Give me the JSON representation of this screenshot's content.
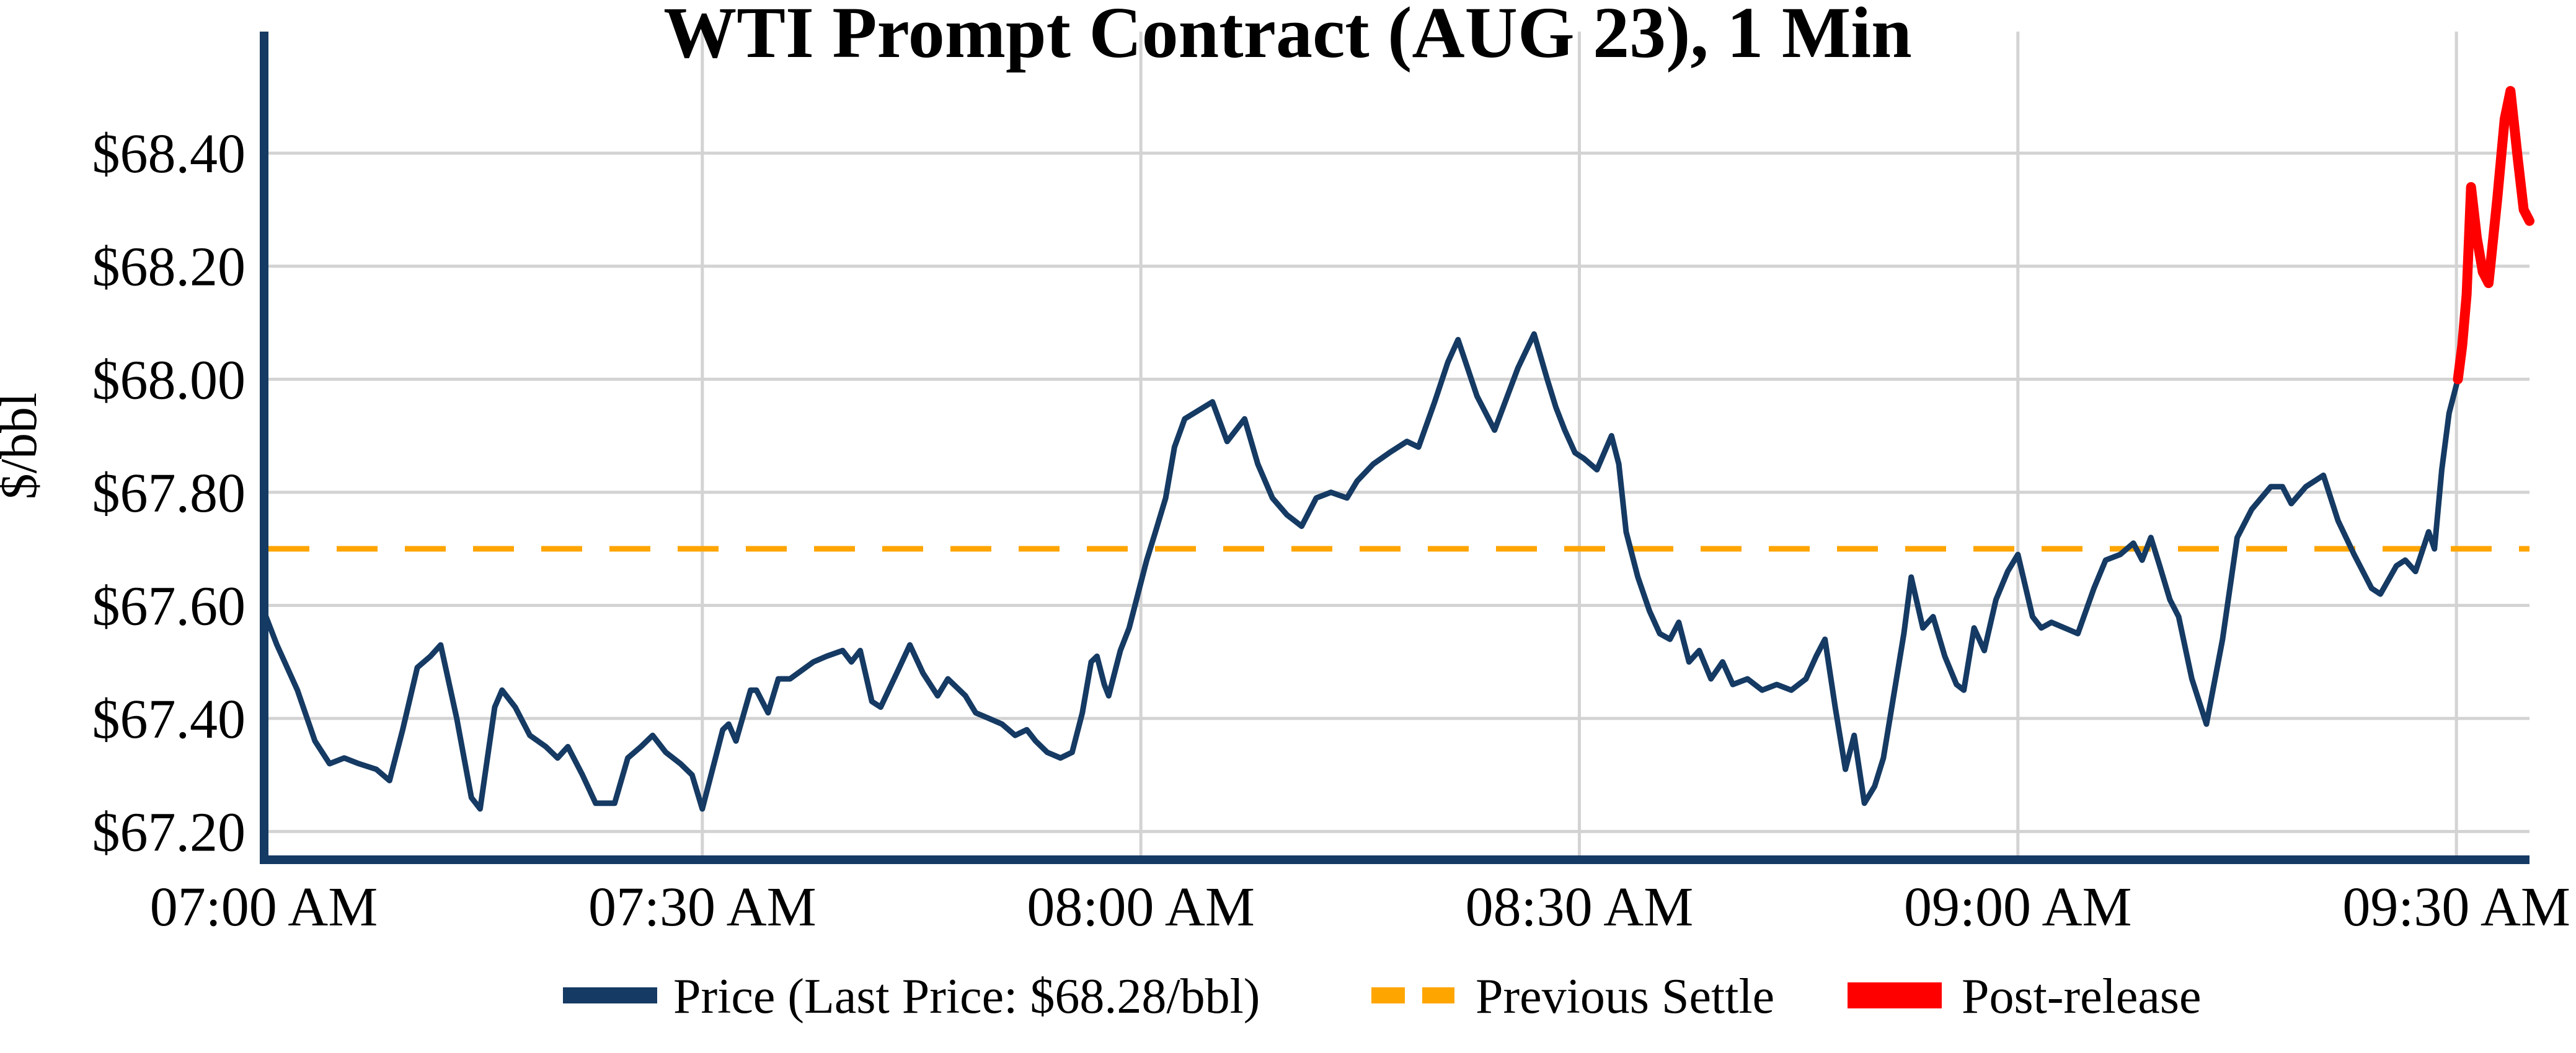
{
  "title": "WTI Prompt Contract (AUG 23), 1 Min",
  "colors": {
    "price_line": "#153a63",
    "previous_settle_line": "#ffa500",
    "post_release_line": "#ff0000",
    "gridline": "#d3d3d3",
    "axis_spine": "#153a63",
    "text": "#000000",
    "background": "#ffffff"
  },
  "chart_data": {
    "type": "line",
    "title": "WTI Prompt Contract (AUG 23), 1 Min",
    "xlabel": "",
    "ylabel": "$/bbl",
    "x_unit": "minutes after 07:00 AM",
    "xlim": [
      0,
      155
    ],
    "ylim": [
      67.15,
      68.615
    ],
    "grid": true,
    "legend_position": "bottom",
    "previous_settle": 67.7,
    "last_price_text": "$68.28/bbl",
    "x_ticks": [
      {
        "t": 0,
        "label": "07:00 AM"
      },
      {
        "t": 30,
        "label": "07:30 AM"
      },
      {
        "t": 60,
        "label": "08:00 AM"
      },
      {
        "t": 90,
        "label": "08:30 AM"
      },
      {
        "t": 120,
        "label": "09:00 AM"
      },
      {
        "t": 150,
        "label": "09:30 AM"
      }
    ],
    "y_ticks": [
      {
        "v": 67.2,
        "label": "$67.20"
      },
      {
        "v": 67.4,
        "label": "$67.40"
      },
      {
        "v": 67.6,
        "label": "$67.60"
      },
      {
        "v": 67.8,
        "label": "$67.80"
      },
      {
        "v": 68.0,
        "label": "$68.00"
      },
      {
        "v": 68.2,
        "label": "$68.20"
      },
      {
        "v": 68.4,
        "label": "$68.40"
      }
    ],
    "series": [
      {
        "name": "Price (Last Price: $68.28/bbl)",
        "role": "price",
        "color": "#153a63",
        "width": 9,
        "style": "solid",
        "points": [
          [
            0,
            67.59
          ],
          [
            0.9,
            67.53
          ],
          [
            2.3,
            67.45
          ],
          [
            3.5,
            67.36
          ],
          [
            4.5,
            67.32
          ],
          [
            5.5,
            67.33
          ],
          [
            6.5,
            67.32
          ],
          [
            7.7,
            67.31
          ],
          [
            8.6,
            67.29
          ],
          [
            9.5,
            67.38
          ],
          [
            10.5,
            67.49
          ],
          [
            11.4,
            67.51
          ],
          [
            12.1,
            67.53
          ],
          [
            13.2,
            67.4
          ],
          [
            14.2,
            67.26
          ],
          [
            14.8,
            67.24
          ],
          [
            15.8,
            67.42
          ],
          [
            16.3,
            67.45
          ],
          [
            17.2,
            67.42
          ],
          [
            18.2,
            67.37
          ],
          [
            19.3,
            67.35
          ],
          [
            20.1,
            67.33
          ],
          [
            20.8,
            67.35
          ],
          [
            21.8,
            67.3
          ],
          [
            22.7,
            67.25
          ],
          [
            24,
            67.25
          ],
          [
            24.9,
            67.33
          ],
          [
            25.8,
            67.35
          ],
          [
            26.6,
            67.37
          ],
          [
            27.5,
            67.34
          ],
          [
            28.5,
            67.32
          ],
          [
            29.3,
            67.3
          ],
          [
            30,
            67.24
          ],
          [
            31.4,
            67.38
          ],
          [
            31.8,
            67.39
          ],
          [
            32.3,
            67.36
          ],
          [
            33.3,
            67.45
          ],
          [
            33.7,
            67.45
          ],
          [
            34.5,
            67.41
          ],
          [
            35.2,
            67.47
          ],
          [
            36,
            67.47
          ],
          [
            37.6,
            67.5
          ],
          [
            38.5,
            67.51
          ],
          [
            39.6,
            67.52
          ],
          [
            40.2,
            67.5
          ],
          [
            40.8,
            67.52
          ],
          [
            41.6,
            67.43
          ],
          [
            42.2,
            67.42
          ],
          [
            43.3,
            67.48
          ],
          [
            44.2,
            67.53
          ],
          [
            45.1,
            67.48
          ],
          [
            46.1,
            67.44
          ],
          [
            46.8,
            67.47
          ],
          [
            48,
            67.44
          ],
          [
            48.7,
            67.41
          ],
          [
            49.6,
            67.4
          ],
          [
            50.5,
            67.39
          ],
          [
            51.4,
            67.37
          ],
          [
            52.2,
            67.38
          ],
          [
            52.8,
            67.36
          ],
          [
            53.6,
            67.34
          ],
          [
            54.5,
            67.33
          ],
          [
            55.3,
            67.34
          ],
          [
            56,
            67.41
          ],
          [
            56.6,
            67.5
          ],
          [
            57,
            67.51
          ],
          [
            57.5,
            67.46
          ],
          [
            57.8,
            67.44
          ],
          [
            58.6,
            67.52
          ],
          [
            59.2,
            67.56
          ],
          [
            59.8,
            67.62
          ],
          [
            60.4,
            67.68
          ],
          [
            61,
            67.73
          ],
          [
            61.7,
            67.79
          ],
          [
            62.3,
            67.88
          ],
          [
            63,
            67.93
          ],
          [
            64.9,
            67.96
          ],
          [
            65.9,
            67.89
          ],
          [
            67.1,
            67.93
          ],
          [
            68,
            67.85
          ],
          [
            69,
            67.79
          ],
          [
            70,
            67.76
          ],
          [
            71,
            67.74
          ],
          [
            72,
            67.79
          ],
          [
            73,
            67.8
          ],
          [
            74.1,
            67.79
          ],
          [
            74.8,
            67.82
          ],
          [
            75.9,
            67.85
          ],
          [
            77,
            67.87
          ],
          [
            78.2,
            67.89
          ],
          [
            79,
            67.88
          ],
          [
            80.1,
            67.96
          ],
          [
            81,
            68.03
          ],
          [
            81.7,
            68.07
          ],
          [
            83,
            67.97
          ],
          [
            84.2,
            67.91
          ],
          [
            85.8,
            68.02
          ],
          [
            86.9,
            68.08
          ],
          [
            87.8,
            68.0
          ],
          [
            88.4,
            67.95
          ],
          [
            89,
            67.91
          ],
          [
            89.7,
            67.87
          ],
          [
            90.3,
            67.86
          ],
          [
            91.2,
            67.84
          ],
          [
            92.2,
            67.9
          ],
          [
            92.7,
            67.85
          ],
          [
            93.2,
            67.73
          ],
          [
            94,
            67.65
          ],
          [
            94.8,
            67.59
          ],
          [
            95.5,
            67.55
          ],
          [
            96.2,
            67.54
          ],
          [
            96.8,
            67.57
          ],
          [
            97.5,
            67.5
          ],
          [
            98.2,
            67.52
          ],
          [
            99,
            67.47
          ],
          [
            99.8,
            67.5
          ],
          [
            100.5,
            67.46
          ],
          [
            101.5,
            67.47
          ],
          [
            102.5,
            67.45
          ],
          [
            103.5,
            67.46
          ],
          [
            104.5,
            67.45
          ],
          [
            105.5,
            67.47
          ],
          [
            106.2,
            67.51
          ],
          [
            106.8,
            67.54
          ],
          [
            107.5,
            67.42
          ],
          [
            108.2,
            67.31
          ],
          [
            108.8,
            67.37
          ],
          [
            109.5,
            67.25
          ],
          [
            110.2,
            67.28
          ],
          [
            110.8,
            67.33
          ],
          [
            111.5,
            67.44
          ],
          [
            112.2,
            67.55
          ],
          [
            112.7,
            67.65
          ],
          [
            113.5,
            67.56
          ],
          [
            114.2,
            67.58
          ],
          [
            115,
            67.51
          ],
          [
            115.8,
            67.46
          ],
          [
            116.3,
            67.45
          ],
          [
            117,
            67.56
          ],
          [
            117.7,
            67.52
          ],
          [
            118.5,
            67.61
          ],
          [
            119.3,
            67.66
          ],
          [
            120,
            67.69
          ],
          [
            121,
            67.58
          ],
          [
            121.6,
            67.56
          ],
          [
            122.3,
            67.57
          ],
          [
            123.2,
            67.56
          ],
          [
            124.1,
            67.55
          ],
          [
            125.2,
            67.63
          ],
          [
            126,
            67.68
          ],
          [
            127,
            67.69
          ],
          [
            127.9,
            67.71
          ],
          [
            128.5,
            67.68
          ],
          [
            129.1,
            67.72
          ],
          [
            129.7,
            67.67
          ],
          [
            130.4,
            67.61
          ],
          [
            131,
            67.58
          ],
          [
            131.9,
            67.47
          ],
          [
            132.9,
            67.39
          ],
          [
            134,
            67.54
          ],
          [
            135,
            67.72
          ],
          [
            136,
            67.77
          ],
          [
            137.3,
            67.81
          ],
          [
            138.1,
            67.81
          ],
          [
            138.7,
            67.78
          ],
          [
            139.7,
            67.81
          ],
          [
            140.9,
            67.83
          ],
          [
            141.9,
            67.75
          ],
          [
            143,
            67.69
          ],
          [
            144.2,
            67.63
          ],
          [
            144.8,
            67.62
          ],
          [
            145.9,
            67.67
          ],
          [
            146.5,
            67.68
          ],
          [
            147.2,
            67.66
          ],
          [
            148.1,
            67.73
          ],
          [
            148.5,
            67.7
          ],
          [
            149,
            67.84
          ],
          [
            149.5,
            67.94
          ],
          [
            150.1,
            68.0
          ]
        ]
      },
      {
        "name": "Previous Settle",
        "role": "previous-settle",
        "color": "#ffa500",
        "width": 9,
        "style": "dashed",
        "value": 67.7
      },
      {
        "name": "Post-release",
        "role": "post-release",
        "color": "#ff0000",
        "width": 16,
        "style": "solid",
        "points": [
          [
            150.1,
            68.0
          ],
          [
            150.4,
            68.06
          ],
          [
            150.7,
            68.15
          ],
          [
            151,
            68.34
          ],
          [
            151.4,
            68.25
          ],
          [
            151.8,
            68.19
          ],
          [
            152.2,
            68.17
          ],
          [
            152.8,
            68.32
          ],
          [
            153.3,
            68.46
          ],
          [
            153.7,
            68.51
          ],
          [
            154.2,
            68.39
          ],
          [
            154.6,
            68.3
          ],
          [
            155,
            68.28
          ]
        ]
      }
    ]
  },
  "legend": {
    "price_label": "Price (Last Price: $68.28/bbl)",
    "previous_settle_label": "Previous Settle",
    "post_release_label": "Post-release"
  }
}
